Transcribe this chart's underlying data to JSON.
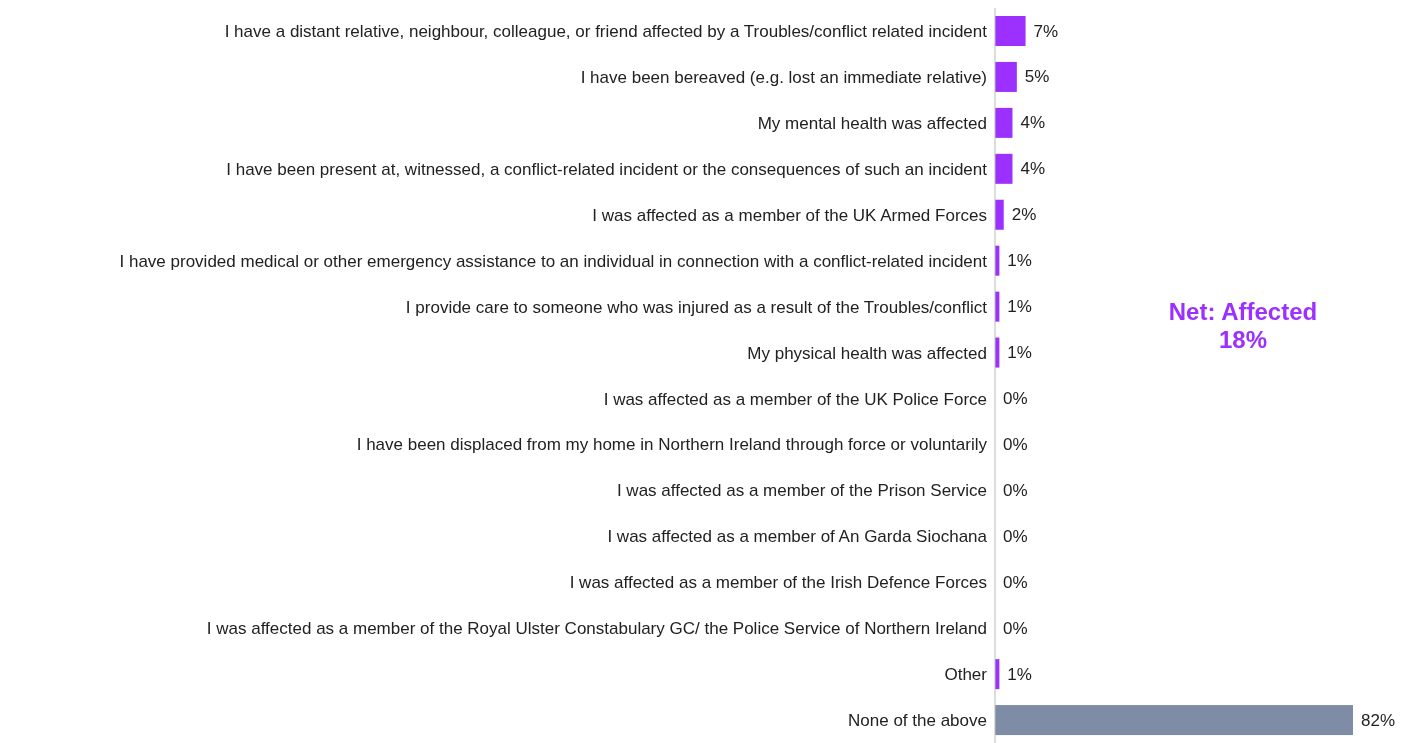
{
  "chart_data": {
    "type": "bar",
    "orientation": "horizontal",
    "categories": [
      "I have a distant relative, neighbour, colleague, or friend affected by a Troubles/conflict related incident",
      "I have been bereaved (e.g. lost an immediate relative)",
      "My mental health was affected",
      "I have been present at, witnessed, a conflict-related incident or the consequences of such an incident",
      "I was affected as a member of the UK Armed Forces",
      "I have provided medical or other emergency assistance to an individual in connection with a conflict-related incident",
      "I provide care to someone who was injured as a result of the Troubles/conflict",
      "My physical health was affected",
      "I was affected as a member of the UK Police Force",
      "I have been displaced from my home in Northern Ireland through force or voluntarily",
      "I was affected as a member of the Prison Service",
      "I was affected as a member of An Garda Siochana",
      "I was affected as a member of the Irish Defence Forces",
      "I was affected as a member of the Royal Ulster Constabulary GC/ the Police Service of Northern Ireland",
      "Other",
      "None of the above"
    ],
    "values": [
      7,
      5,
      4,
      4,
      2,
      1,
      1,
      1,
      0,
      0,
      0,
      0,
      0,
      0,
      1,
      82
    ],
    "value_labels": [
      "7%",
      "5%",
      "4%",
      "4%",
      "2%",
      "1%",
      "1%",
      "1%",
      "0%",
      "0%",
      "0%",
      "0%",
      "0%",
      "0%",
      "1%",
      "82%"
    ],
    "colors": [
      "#9b30ff",
      "#9b30ff",
      "#9b30ff",
      "#9b30ff",
      "#9b30ff",
      "#9b30ff",
      "#9b30ff",
      "#9b30ff",
      "#9b30ff",
      "#9b30ff",
      "#9b30ff",
      "#9b30ff",
      "#9b30ff",
      "#9b30ff",
      "#9b30ff",
      "#7f8ca5"
    ],
    "annotations": [
      "Net: Affected 18%"
    ],
    "grid": false,
    "legend": false
  }
}
